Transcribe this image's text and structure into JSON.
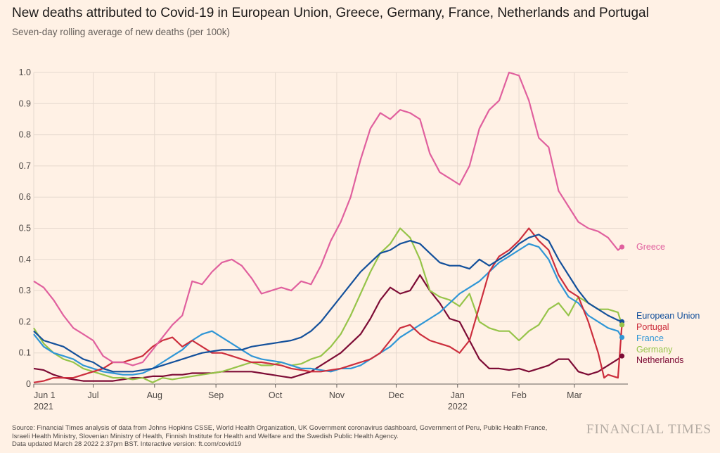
{
  "header": {
    "title": "New deaths attributed to Covid-19 in European Union, Greece, Germany, France, Netherlands and Portugal",
    "subtitle": "Seven-day rolling average of new deaths (per 100k)"
  },
  "footer": {
    "source_line1": "Source: Financial Times analysis of data from Johns Hopkins CSSE, World Health Organization, UK Government coronavirus dashboard, Government of Peru, Public Health France,",
    "source_line2": "Israeli Health Ministry, Slovenian Ministry of Health, Finnish Institute for Health and Welfare and the Swedish Public Health Agency.",
    "source_line3": "Data updated March 28 2022 2.37pm BST. Interactive version: ft.com/covid19",
    "brand": "FINANCIAL TIMES"
  },
  "chart_data": {
    "type": "line",
    "title": "New deaths attributed to Covid-19 in European Union, Greece, Germany, France, Netherlands and Portugal",
    "subtitle": "Seven-day rolling average of new deaths (per 100k)",
    "xlabel": "",
    "ylabel": "",
    "x_unit": "days since 2021-06-01",
    "xlim": [
      0,
      300
    ],
    "ylim": [
      0,
      1.0
    ],
    "y_ticks": [
      "0",
      "0.1",
      "0.2",
      "0.3",
      "0.4",
      "0.5",
      "0.6",
      "0.7",
      "0.8",
      "0.9",
      "1.0"
    ],
    "x_ticks": [
      {
        "day": 0,
        "label": "Jun 1",
        "sub": "2021"
      },
      {
        "day": 30,
        "label": "Jul",
        "sub": ""
      },
      {
        "day": 61,
        "label": "Aug",
        "sub": ""
      },
      {
        "day": 92,
        "label": "Sep",
        "sub": ""
      },
      {
        "day": 122,
        "label": "Oct",
        "sub": ""
      },
      {
        "day": 153,
        "label": "Nov",
        "sub": ""
      },
      {
        "day": 183,
        "label": "Dec",
        "sub": ""
      },
      {
        "day": 214,
        "label": "Jan",
        "sub": "2022"
      },
      {
        "day": 245,
        "label": "Feb",
        "sub": ""
      },
      {
        "day": 273,
        "label": "Mar",
        "sub": ""
      }
    ],
    "grid": true,
    "series": [
      {
        "name": "Greece",
        "color": "#e0609e",
        "x": [
          0,
          5,
          10,
          15,
          20,
          25,
          30,
          35,
          40,
          45,
          50,
          55,
          60,
          65,
          70,
          75,
          80,
          85,
          90,
          95,
          100,
          105,
          110,
          115,
          120,
          125,
          130,
          135,
          140,
          145,
          150,
          155,
          160,
          165,
          170,
          175,
          180,
          185,
          190,
          195,
          200,
          205,
          210,
          215,
          220,
          225,
          230,
          235,
          240,
          245,
          250,
          255,
          260,
          265,
          270,
          275,
          280,
          285,
          290,
          295,
          297
        ],
        "values": [
          0.33,
          0.31,
          0.27,
          0.22,
          0.18,
          0.16,
          0.14,
          0.09,
          0.07,
          0.07,
          0.06,
          0.07,
          0.11,
          0.15,
          0.19,
          0.22,
          0.33,
          0.32,
          0.36,
          0.39,
          0.4,
          0.38,
          0.34,
          0.29,
          0.3,
          0.31,
          0.3,
          0.33,
          0.32,
          0.38,
          0.46,
          0.52,
          0.6,
          0.72,
          0.82,
          0.87,
          0.85,
          0.88,
          0.87,
          0.85,
          0.74,
          0.68,
          0.66,
          0.64,
          0.7,
          0.82,
          0.88,
          0.91,
          1.0,
          0.99,
          0.91,
          0.79,
          0.76,
          0.62,
          0.57,
          0.52,
          0.5,
          0.49,
          0.47,
          0.43,
          0.44
        ]
      },
      {
        "name": "European Union",
        "color": "#13509b",
        "x": [
          0,
          5,
          10,
          15,
          20,
          25,
          30,
          35,
          40,
          45,
          50,
          55,
          60,
          65,
          70,
          75,
          80,
          85,
          90,
          95,
          100,
          105,
          110,
          115,
          120,
          125,
          130,
          135,
          140,
          145,
          150,
          155,
          160,
          165,
          170,
          175,
          180,
          185,
          190,
          195,
          200,
          205,
          210,
          215,
          220,
          225,
          230,
          235,
          240,
          245,
          250,
          255,
          260,
          265,
          270,
          275,
          280,
          285,
          290,
          295,
          297
        ],
        "values": [
          0.17,
          0.14,
          0.13,
          0.12,
          0.1,
          0.08,
          0.07,
          0.05,
          0.04,
          0.04,
          0.04,
          0.045,
          0.05,
          0.06,
          0.07,
          0.08,
          0.09,
          0.1,
          0.105,
          0.11,
          0.11,
          0.11,
          0.12,
          0.125,
          0.13,
          0.135,
          0.14,
          0.15,
          0.17,
          0.2,
          0.24,
          0.28,
          0.32,
          0.36,
          0.39,
          0.42,
          0.43,
          0.45,
          0.46,
          0.45,
          0.42,
          0.39,
          0.38,
          0.38,
          0.37,
          0.4,
          0.38,
          0.4,
          0.42,
          0.45,
          0.47,
          0.48,
          0.46,
          0.4,
          0.35,
          0.3,
          0.26,
          0.24,
          0.22,
          0.205,
          0.2
        ]
      },
      {
        "name": "Portugal",
        "color": "#cc2e3d",
        "x": [
          0,
          5,
          10,
          15,
          20,
          25,
          30,
          35,
          40,
          45,
          50,
          55,
          60,
          65,
          70,
          75,
          80,
          85,
          90,
          95,
          100,
          105,
          110,
          115,
          120,
          125,
          130,
          135,
          140,
          145,
          150,
          155,
          160,
          165,
          170,
          175,
          180,
          185,
          190,
          195,
          200,
          205,
          210,
          215,
          220,
          225,
          230,
          235,
          240,
          245,
          250,
          255,
          260,
          265,
          270,
          275,
          280,
          285,
          288,
          290,
          295,
          297
        ],
        "values": [
          0.005,
          0.01,
          0.02,
          0.02,
          0.02,
          0.03,
          0.04,
          0.05,
          0.07,
          0.07,
          0.08,
          0.09,
          0.12,
          0.14,
          0.15,
          0.12,
          0.14,
          0.12,
          0.1,
          0.1,
          0.09,
          0.08,
          0.07,
          0.07,
          0.065,
          0.06,
          0.05,
          0.045,
          0.04,
          0.04,
          0.045,
          0.05,
          0.06,
          0.07,
          0.08,
          0.1,
          0.14,
          0.18,
          0.19,
          0.16,
          0.14,
          0.13,
          0.12,
          0.1,
          0.14,
          0.25,
          0.36,
          0.41,
          0.43,
          0.46,
          0.5,
          0.46,
          0.43,
          0.35,
          0.3,
          0.28,
          0.2,
          0.1,
          0.02,
          0.03,
          0.02,
          0.19
        ]
      },
      {
        "name": "France",
        "color": "#2f96d6",
        "x": [
          0,
          5,
          10,
          15,
          20,
          25,
          30,
          35,
          40,
          45,
          50,
          55,
          60,
          65,
          70,
          75,
          80,
          85,
          90,
          95,
          100,
          105,
          110,
          115,
          120,
          125,
          130,
          135,
          140,
          145,
          150,
          155,
          160,
          165,
          170,
          175,
          180,
          185,
          190,
          195,
          200,
          205,
          210,
          215,
          220,
          225,
          230,
          235,
          240,
          245,
          250,
          255,
          260,
          265,
          270,
          275,
          280,
          285,
          290,
          295,
          297
        ],
        "values": [
          0.16,
          0.12,
          0.1,
          0.09,
          0.08,
          0.06,
          0.05,
          0.04,
          0.035,
          0.03,
          0.03,
          0.035,
          0.05,
          0.07,
          0.09,
          0.11,
          0.14,
          0.16,
          0.17,
          0.15,
          0.13,
          0.11,
          0.09,
          0.08,
          0.075,
          0.07,
          0.06,
          0.05,
          0.05,
          0.045,
          0.04,
          0.05,
          0.05,
          0.06,
          0.08,
          0.1,
          0.12,
          0.15,
          0.17,
          0.19,
          0.21,
          0.23,
          0.26,
          0.29,
          0.31,
          0.33,
          0.36,
          0.39,
          0.41,
          0.43,
          0.45,
          0.44,
          0.4,
          0.33,
          0.28,
          0.26,
          0.22,
          0.2,
          0.18,
          0.17,
          0.15
        ]
      },
      {
        "name": "Germany",
        "color": "#96c449",
        "x": [
          0,
          5,
          10,
          15,
          20,
          25,
          30,
          35,
          40,
          45,
          50,
          55,
          60,
          65,
          70,
          75,
          80,
          85,
          90,
          95,
          100,
          105,
          110,
          115,
          120,
          125,
          130,
          135,
          140,
          145,
          150,
          155,
          160,
          165,
          170,
          175,
          180,
          185,
          190,
          195,
          200,
          205,
          210,
          215,
          220,
          225,
          230,
          235,
          240,
          245,
          250,
          255,
          260,
          265,
          270,
          275,
          280,
          285,
          290,
          295,
          297
        ],
        "values": [
          0.18,
          0.13,
          0.1,
          0.08,
          0.07,
          0.05,
          0.04,
          0.03,
          0.02,
          0.02,
          0.015,
          0.02,
          0.005,
          0.02,
          0.015,
          0.02,
          0.025,
          0.03,
          0.035,
          0.04,
          0.05,
          0.06,
          0.07,
          0.06,
          0.06,
          0.07,
          0.06,
          0.065,
          0.08,
          0.09,
          0.12,
          0.16,
          0.22,
          0.29,
          0.36,
          0.42,
          0.45,
          0.5,
          0.47,
          0.4,
          0.3,
          0.28,
          0.27,
          0.25,
          0.29,
          0.2,
          0.18,
          0.17,
          0.17,
          0.14,
          0.17,
          0.19,
          0.24,
          0.26,
          0.22,
          0.28,
          0.26,
          0.24,
          0.24,
          0.23,
          0.19
        ]
      },
      {
        "name": "Netherlands",
        "color": "#7d0b35",
        "x": [
          0,
          5,
          10,
          15,
          20,
          25,
          30,
          35,
          40,
          45,
          50,
          55,
          60,
          65,
          70,
          75,
          80,
          85,
          90,
          95,
          100,
          105,
          110,
          115,
          120,
          125,
          130,
          135,
          140,
          145,
          150,
          155,
          160,
          165,
          170,
          175,
          180,
          185,
          190,
          195,
          200,
          205,
          210,
          215,
          220,
          225,
          230,
          235,
          240,
          245,
          250,
          255,
          260,
          265,
          270,
          275,
          280,
          285,
          290,
          295,
          297
        ],
        "values": [
          0.05,
          0.045,
          0.03,
          0.02,
          0.015,
          0.01,
          0.01,
          0.01,
          0.01,
          0.015,
          0.02,
          0.02,
          0.025,
          0.025,
          0.03,
          0.03,
          0.035,
          0.035,
          0.035,
          0.04,
          0.04,
          0.04,
          0.04,
          0.035,
          0.03,
          0.025,
          0.02,
          0.03,
          0.04,
          0.06,
          0.08,
          0.1,
          0.13,
          0.16,
          0.21,
          0.27,
          0.31,
          0.29,
          0.3,
          0.35,
          0.3,
          0.26,
          0.21,
          0.2,
          0.14,
          0.08,
          0.05,
          0.05,
          0.045,
          0.05,
          0.04,
          0.05,
          0.06,
          0.08,
          0.08,
          0.04,
          0.03,
          0.04,
          0.06,
          0.08,
          0.09
        ]
      }
    ],
    "end_labels": [
      {
        "name": "Greece",
        "label": "Greece"
      },
      {
        "name": "European Union",
        "label": "European Union"
      },
      {
        "name": "Portugal",
        "label": "Portugal"
      },
      {
        "name": "France",
        "label": "France"
      },
      {
        "name": "Germany",
        "label": "Germany"
      },
      {
        "name": "Netherlands",
        "label": "Netherlands"
      }
    ]
  }
}
